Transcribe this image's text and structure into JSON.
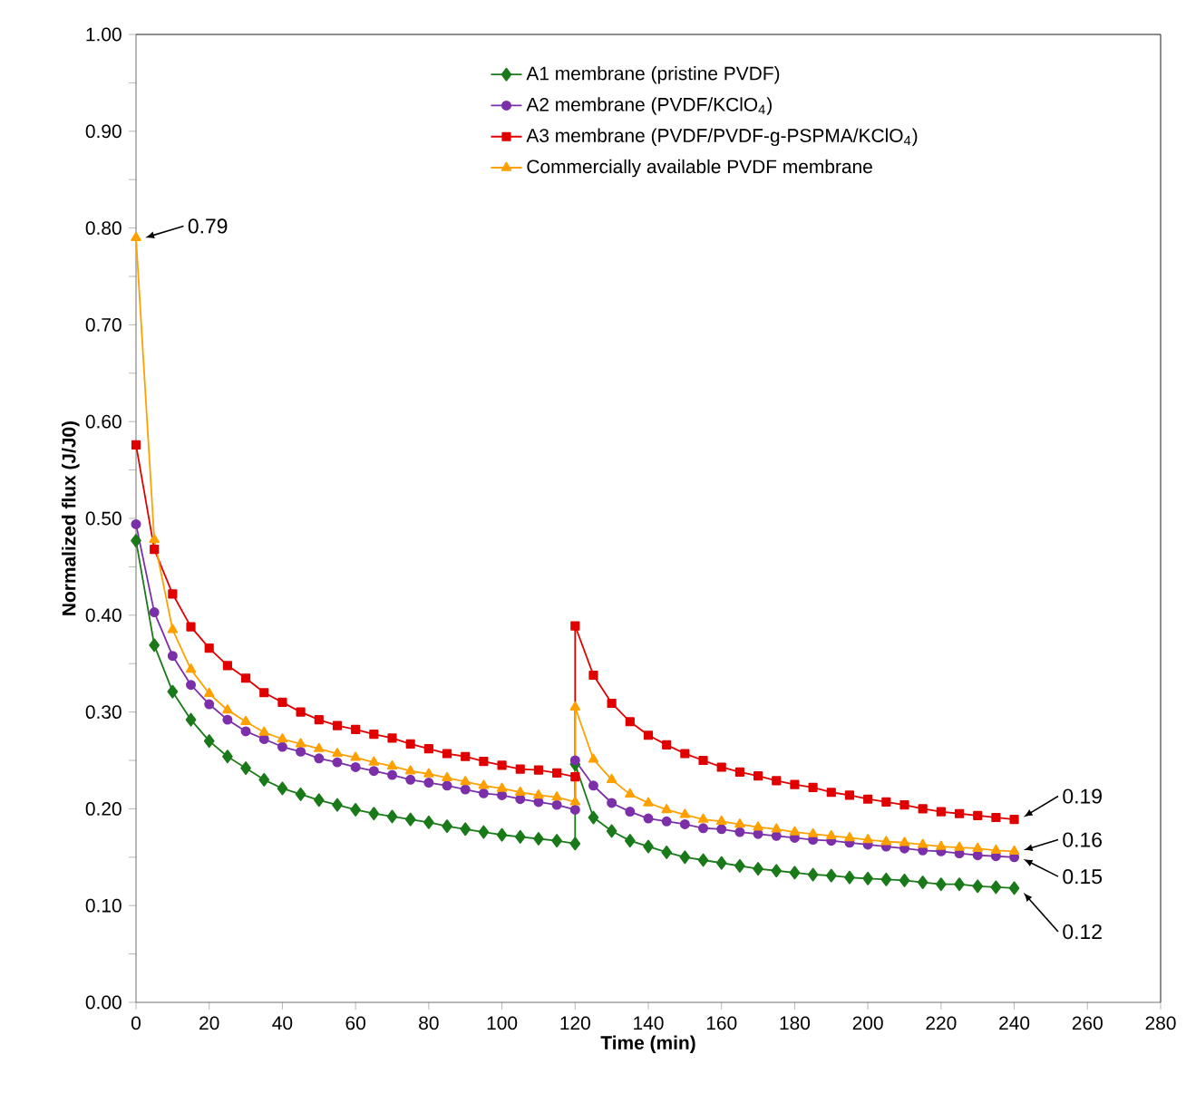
{
  "chart_data": {
    "type": "line",
    "xlabel": "Time (min)",
    "ylabel": "Normalized flux (J/J0)",
    "x": [
      0,
      5,
      10,
      15,
      20,
      25,
      30,
      35,
      40,
      45,
      50,
      55,
      60,
      65,
      70,
      75,
      80,
      85,
      90,
      95,
      100,
      105,
      110,
      115,
      120,
      120,
      125,
      130,
      135,
      140,
      145,
      150,
      155,
      160,
      165,
      170,
      175,
      180,
      185,
      190,
      195,
      200,
      205,
      210,
      215,
      220,
      225,
      230,
      235,
      240
    ],
    "series": [
      {
        "name": "A1 membrane (pristine PVDF)",
        "color": "#1a7a1a",
        "marker": "diamond",
        "values": [
          0.477,
          0.369,
          0.321,
          0.292,
          0.27,
          0.254,
          0.242,
          0.23,
          0.221,
          0.215,
          0.209,
          0.204,
          0.199,
          0.195,
          0.192,
          0.189,
          0.186,
          0.182,
          0.179,
          0.176,
          0.173,
          0.171,
          0.169,
          0.167,
          0.164,
          0.246,
          0.191,
          0.177,
          0.167,
          0.161,
          0.155,
          0.15,
          0.147,
          0.144,
          0.141,
          0.138,
          0.136,
          0.134,
          0.132,
          0.131,
          0.129,
          0.128,
          0.127,
          0.126,
          0.124,
          0.122,
          0.122,
          0.12,
          0.119,
          0.118
        ]
      },
      {
        "name": "A2 membrane (PVDF/KClO$_{4}$)",
        "color": "#7b2fa8",
        "marker": "circle",
        "values": [
          0.494,
          0.403,
          0.358,
          0.328,
          0.308,
          0.292,
          0.28,
          0.272,
          0.264,
          0.259,
          0.252,
          0.248,
          0.243,
          0.239,
          0.235,
          0.23,
          0.227,
          0.224,
          0.22,
          0.216,
          0.214,
          0.21,
          0.207,
          0.204,
          0.199,
          0.25,
          0.224,
          0.206,
          0.197,
          0.19,
          0.187,
          0.184,
          0.18,
          0.179,
          0.176,
          0.174,
          0.172,
          0.17,
          0.168,
          0.167,
          0.165,
          0.163,
          0.161,
          0.159,
          0.157,
          0.156,
          0.154,
          0.152,
          0.151,
          0.15
        ]
      },
      {
        "name": "A3 membrane (PVDF/PVDF-g-PSPMA/KClO$_{4}$)",
        "color": "#e00000",
        "marker": "square",
        "values": [
          0.576,
          0.468,
          0.422,
          0.388,
          0.366,
          0.348,
          0.335,
          0.32,
          0.31,
          0.3,
          0.292,
          0.286,
          0.282,
          0.277,
          0.273,
          0.267,
          0.262,
          0.257,
          0.254,
          0.249,
          0.245,
          0.241,
          0.24,
          0.237,
          0.233,
          0.389,
          0.338,
          0.309,
          0.29,
          0.276,
          0.266,
          0.257,
          0.25,
          0.243,
          0.238,
          0.234,
          0.229,
          0.225,
          0.222,
          0.217,
          0.214,
          0.21,
          0.207,
          0.204,
          0.2,
          0.197,
          0.195,
          0.193,
          0.191,
          0.189
        ]
      },
      {
        "name": "Commercially available PVDF membrane",
        "color": "#ffa000",
        "marker": "triangle",
        "values": [
          0.79,
          0.478,
          0.385,
          0.344,
          0.319,
          0.302,
          0.29,
          0.279,
          0.272,
          0.267,
          0.262,
          0.257,
          0.253,
          0.248,
          0.244,
          0.239,
          0.236,
          0.232,
          0.228,
          0.224,
          0.221,
          0.217,
          0.214,
          0.212,
          0.207,
          0.305,
          0.251,
          0.23,
          0.215,
          0.206,
          0.199,
          0.194,
          0.189,
          0.187,
          0.184,
          0.181,
          0.179,
          0.176,
          0.174,
          0.172,
          0.17,
          0.168,
          0.166,
          0.165,
          0.163,
          0.161,
          0.16,
          0.159,
          0.157,
          0.156
        ]
      }
    ],
    "xlim": [
      0,
      280
    ],
    "xticks": [
      0,
      20,
      40,
      60,
      80,
      100,
      120,
      140,
      160,
      180,
      200,
      220,
      240,
      260,
      280
    ],
    "ylim": [
      0,
      1
    ],
    "yticks": [
      {
        "value": 0,
        "label": "0.00"
      },
      {
        "value": 0.05,
        "label": null
      },
      {
        "value": 0.1,
        "label": "0.10"
      },
      {
        "value": 0.15,
        "label": null
      },
      {
        "value": 0.2,
        "label": "0.20"
      },
      {
        "value": 0.25,
        "label": null
      },
      {
        "value": 0.3,
        "label": "0.30"
      },
      {
        "value": 0.35,
        "label": null
      },
      {
        "value": 0.4,
        "label": "0.40"
      },
      {
        "value": 0.45,
        "label": null
      },
      {
        "value": 0.5,
        "label": "0.50"
      },
      {
        "value": 0.55,
        "label": null
      },
      {
        "value": 0.6,
        "label": "0.60"
      },
      {
        "value": 0.65,
        "label": null
      },
      {
        "value": 0.7,
        "label": "0.70"
      },
      {
        "value": 0.75,
        "label": null
      },
      {
        "value": 0.8,
        "label": "0.80"
      },
      {
        "value": 0.85,
        "label": null
      },
      {
        "value": 0.9,
        "label": "0.90"
      },
      {
        "value": 0.95,
        "label": null
      },
      {
        "value": 1,
        "label": "1.00"
      }
    ],
    "annotations": [
      "0.79",
      "0.19",
      "0.16",
      "0.15",
      "0.12"
    ],
    "grid": false,
    "legend": "top",
    "line_style": "solid"
  }
}
